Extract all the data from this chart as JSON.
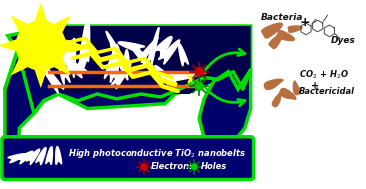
{
  "bg_color": "#ffffff",
  "dark_blue": "#00006A",
  "green_border": "#00DD00",
  "yellow": "#FFFF00",
  "orange_line": "#FF6600",
  "white": "#FFFFFF",
  "red_dot": "#CC0000",
  "green_dot": "#00CC00",
  "brown_bacteria": "#B87040",
  "text_color_white": "#FFFFFF",
  "text_color_black": "#111111",
  "title_text": "High photoconductive TiO$_2$ nanobelts",
  "legend_electrons": "Electrons",
  "legend_holes": "Holes",
  "bacteria_label": "Bacteria",
  "dyes_label": "Dyes",
  "co2_label": "CO$_2$ + H$_2$O",
  "plus_sign": "+",
  "bactericidal_label": "Bactericidal",
  "fig_width": 3.66,
  "fig_height": 1.89,
  "dpi": 100
}
